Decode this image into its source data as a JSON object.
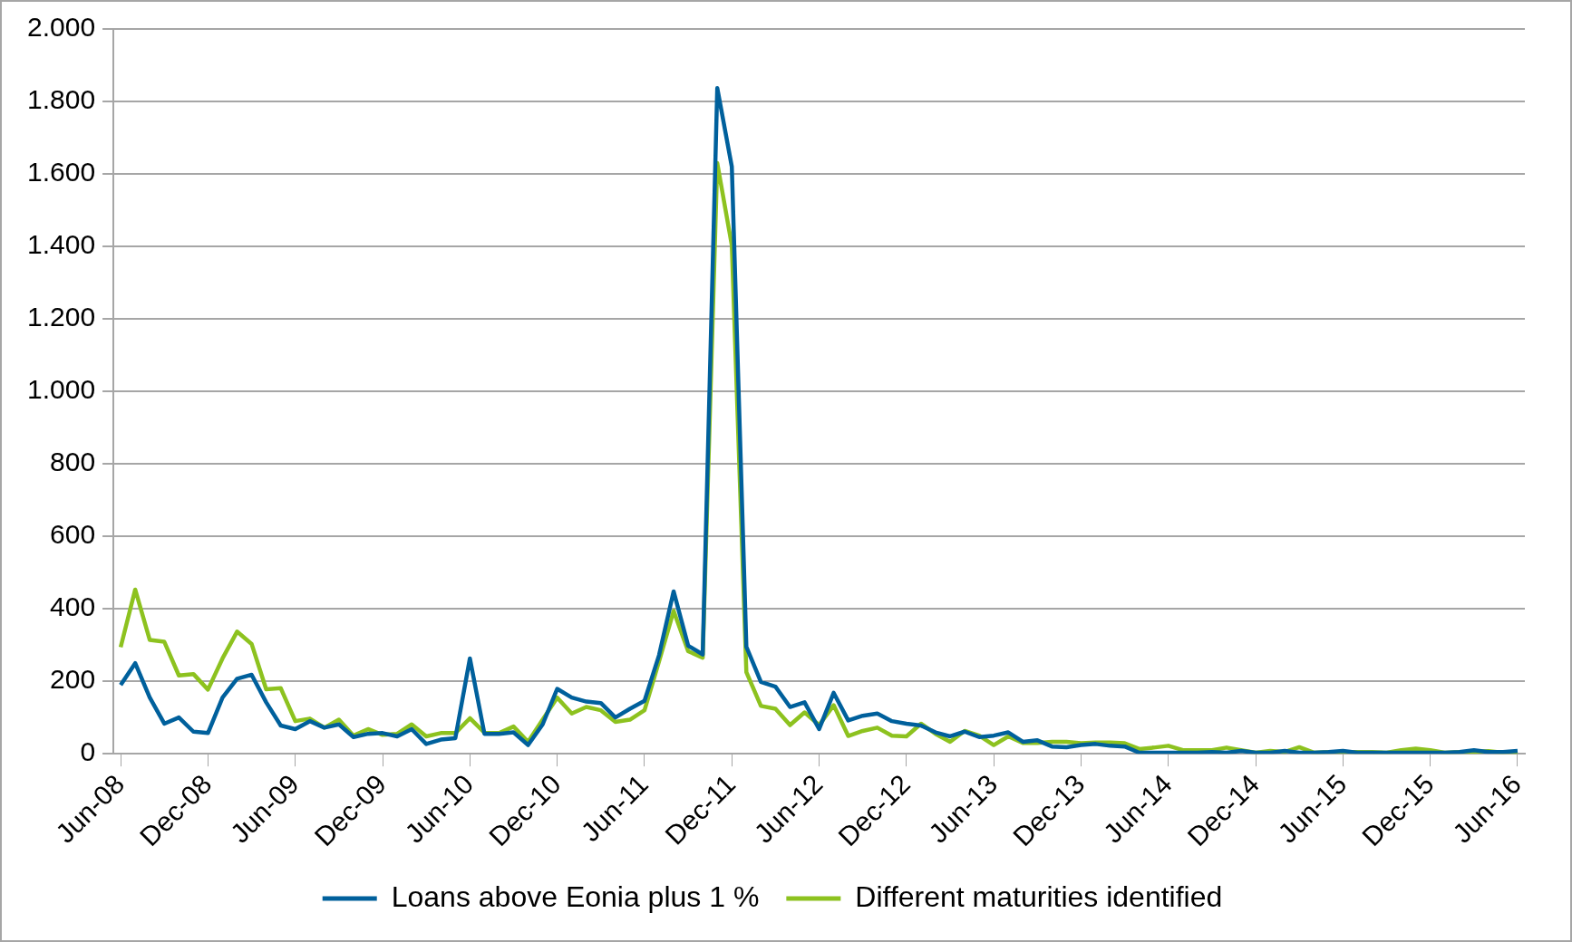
{
  "chart_data": {
    "type": "line",
    "categories": [
      "Jun-08",
      null,
      null,
      null,
      null,
      null,
      "Dec-08",
      null,
      null,
      null,
      null,
      null,
      "Jun-09",
      null,
      null,
      null,
      null,
      null,
      "Dec-09",
      null,
      null,
      null,
      null,
      null,
      "Jun-10",
      null,
      null,
      null,
      null,
      null,
      "Dec-10",
      null,
      null,
      null,
      null,
      null,
      "Jun-11",
      null,
      null,
      null,
      null,
      null,
      "Dec-11",
      null,
      null,
      null,
      null,
      null,
      "Jun-12",
      null,
      null,
      null,
      null,
      null,
      "Dec-12",
      null,
      null,
      null,
      null,
      null,
      "Jun-13",
      null,
      null,
      null,
      null,
      null,
      "Dec-13",
      null,
      null,
      null,
      null,
      null,
      "Jun-14",
      null,
      null,
      null,
      null,
      null,
      "Dec-14",
      null,
      null,
      null,
      null,
      null,
      "Jun-15",
      null,
      null,
      null,
      null,
      null,
      "Dec-15",
      null,
      null,
      null,
      null,
      null,
      "Jun-16"
    ],
    "series": [
      {
        "name": "Loans above Eonia plus 1 %",
        "color": "#00609c",
        "values": [
          190,
          250,
          155,
          83,
          100,
          61,
          57,
          155,
          207,
          218,
          142,
          78,
          68,
          90,
          72,
          81,
          46,
          55,
          57,
          48,
          68,
          27,
          39,
          43,
          263,
          55,
          55,
          59,
          24,
          81,
          179,
          155,
          144,
          140,
          100,
          124,
          146,
          272,
          448,
          298,
          274,
          1837,
          1620,
          295,
          198,
          185,
          129,
          142,
          68,
          168,
          92,
          105,
          111,
          90,
          83,
          78,
          59,
          48,
          61,
          46,
          50,
          59,
          33,
          37,
          20,
          18,
          24,
          27,
          22,
          20,
          3,
          3,
          3,
          3,
          3,
          5,
          3,
          8,
          3,
          3,
          8,
          3,
          3,
          5,
          8,
          3,
          3,
          3,
          3,
          3,
          3,
          3,
          5,
          10,
          5,
          5,
          8
        ]
      },
      {
        "name": "Different maturities identified",
        "color": "#8dc21f",
        "values": [
          294,
          453,
          314,
          309,
          216,
          220,
          177,
          263,
          337,
          303,
          178,
          181,
          90,
          97,
          72,
          94,
          50,
          68,
          52,
          55,
          81,
          48,
          57,
          57,
          98,
          58,
          57,
          75,
          33,
          94,
          155,
          111,
          129,
          120,
          88,
          94,
          120,
          255,
          394,
          283,
          265,
          1630,
          1403,
          225,
          132,
          124,
          79,
          114,
          79,
          134,
          49,
          63,
          72,
          50,
          48,
          83,
          55,
          33,
          63,
          50,
          24,
          48,
          30,
          30,
          33,
          33,
          29,
          31,
          31,
          29,
          13,
          17,
          22,
          10,
          10,
          10,
          17,
          10,
          3,
          8,
          5,
          18,
          3,
          5,
          5,
          5,
          5,
          3,
          10,
          14,
          10,
          3,
          5,
          5,
          7,
          3,
          3
        ]
      }
    ],
    "ylim": [
      0,
      2000
    ],
    "yticks": [
      {
        "value": 0,
        "label": "0"
      },
      {
        "value": 200,
        "label": "200"
      },
      {
        "value": 400,
        "label": "400"
      },
      {
        "value": 600,
        "label": "600"
      },
      {
        "value": 800,
        "label": "800"
      },
      {
        "value": 1000,
        "label": "1.000"
      },
      {
        "value": 1200,
        "label": "1.200"
      },
      {
        "value": 1400,
        "label": "1.400"
      },
      {
        "value": 1600,
        "label": "1.600"
      },
      {
        "value": 1800,
        "label": "1.800"
      },
      {
        "value": 2000,
        "label": "2.000"
      }
    ],
    "grid": "y",
    "legend": "bottom",
    "marker": "none",
    "line_style": "solid"
  }
}
